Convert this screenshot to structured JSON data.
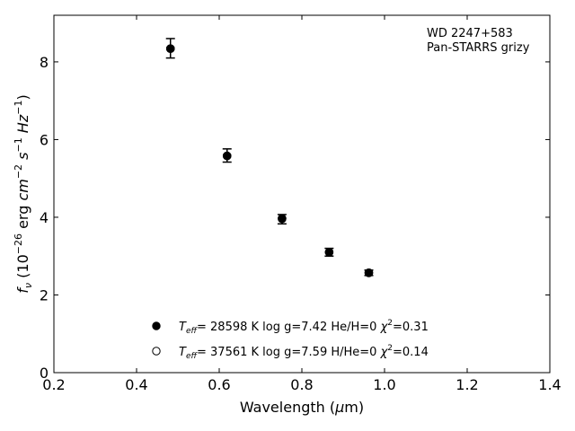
{
  "chart_data": {
    "type": "scatter",
    "title": "",
    "annotation": [
      "WD 2247+583",
      "Pan-STARRS grizy"
    ],
    "xlabel": "Wavelength (μm)",
    "ylabel": "f_ν (10^-26 erg cm^-2 s^-1 Hz^-1)",
    "xlim": [
      0.2,
      1.4
    ],
    "ylim": [
      0,
      9.2
    ],
    "xticks": [
      0.2,
      0.4,
      0.6,
      0.8,
      1.0,
      1.2,
      1.4
    ],
    "xtick_labels": [
      "0.2",
      "0.4",
      "0.6",
      "0.8",
      "1.0",
      "1.2",
      "1.4"
    ],
    "yticks": [
      0,
      2,
      4,
      6,
      8
    ],
    "ytick_labels": [
      "0",
      "2",
      "4",
      "6",
      "8"
    ],
    "grid": false,
    "legend_position": "bottom-center",
    "series": [
      {
        "name": "T_eff= 28598 K  log g=7.42  He/H=0  χ²=0.31",
        "marker": "filled-circle",
        "color": "#000000",
        "x": [
          0.482,
          0.619,
          0.752,
          0.866,
          0.962
        ],
        "y": [
          8.34,
          5.58,
          3.97,
          3.1,
          2.57
        ]
      },
      {
        "name": "T_eff= 37561 K  log g=7.59  H/He=0  χ²=0.14",
        "marker": "open-circle",
        "color": "#000000",
        "x": [
          0.482,
          0.619,
          0.752,
          0.866,
          0.962
        ],
        "y": [
          8.34,
          5.58,
          3.96,
          3.1,
          2.57
        ]
      }
    ],
    "observed": {
      "x": [
        0.482,
        0.619,
        0.752,
        0.866,
        0.962
      ],
      "y": [
        8.35,
        5.59,
        3.95,
        3.1,
        2.57
      ],
      "yerr": [
        0.25,
        0.17,
        0.12,
        0.1,
        0.07
      ]
    }
  }
}
